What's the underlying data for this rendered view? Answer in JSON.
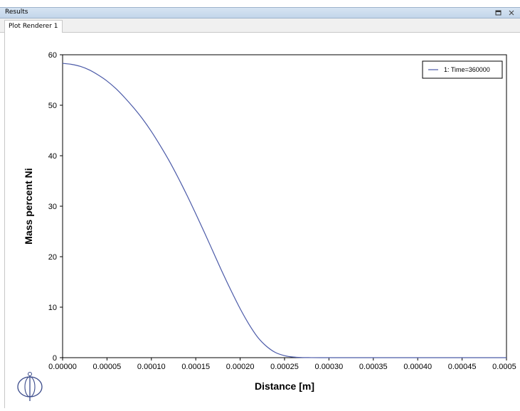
{
  "panel": {
    "title": "Results",
    "restore_icon": "restore-icon",
    "close_icon": "close-icon"
  },
  "tabs": [
    {
      "label": "Plot Renderer 1",
      "active": true
    }
  ],
  "logo_icon": "thermo-calc-logo-icon",
  "chart_data": {
    "type": "line",
    "xlabel": "Distance [m]",
    "ylabel": "Mass percent Ni",
    "xlim": [
      0,
      0.0005
    ],
    "ylim": [
      0,
      60
    ],
    "x_ticks": [
      "0.00000",
      "0.00005",
      "0.00010",
      "0.00015",
      "0.00020",
      "0.00025",
      "0.00030",
      "0.00035",
      "0.00040",
      "0.00045",
      "0.00050"
    ],
    "y_ticks": [
      "0",
      "10",
      "20",
      "30",
      "40",
      "50",
      "60"
    ],
    "legend_position": "top-right",
    "grid": false,
    "series": [
      {
        "name": "1:  Time=360000",
        "color": "#4b5aa8",
        "x": [
          0,
          1e-05,
          2e-05,
          3e-05,
          4e-05,
          5e-05,
          6e-05,
          7e-05,
          8e-05,
          9e-05,
          0.0001,
          0.00011,
          0.00012,
          0.00013,
          0.00014,
          0.00015,
          0.00016,
          0.00017,
          0.00018,
          0.00019,
          0.0002,
          0.00021,
          0.00022,
          0.00023,
          0.00024,
          0.00025,
          0.00026,
          0.00027,
          0.00028,
          0.00029,
          0.0003,
          0.00035,
          0.0004,
          0.00045,
          0.0005
        ],
        "y": [
          58.3,
          58.1,
          57.7,
          57.0,
          56.0,
          54.8,
          53.3,
          51.5,
          49.5,
          47.3,
          44.8,
          42.0,
          39.0,
          35.7,
          32.2,
          28.5,
          24.7,
          20.8,
          16.9,
          13.2,
          9.7,
          6.6,
          4.0,
          2.2,
          1.0,
          0.4,
          0.12,
          0.03,
          0.01,
          0.0,
          0.0,
          0.0,
          0.0,
          0.0,
          0.0
        ]
      }
    ]
  }
}
